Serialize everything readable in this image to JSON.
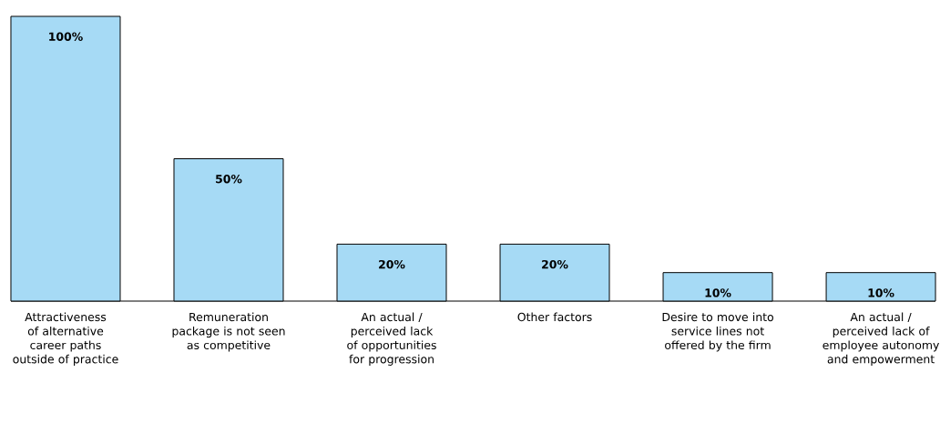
{
  "chart_data": {
    "type": "bar",
    "categories": [
      "Attractiveness of alternative career paths outside of practice",
      "Remuneration package is not seen as competitive",
      "An actual / perceived lack of opportunities for progression",
      "Other factors",
      "Desire to move into service lines not offered by the firm",
      "An actual / perceived lack of employee autonomy and empowerment"
    ],
    "values": [
      100,
      50,
      20,
      20,
      10,
      10
    ],
    "value_labels": [
      "100%",
      "50%",
      "20%",
      "20%",
      "10%",
      "10%"
    ],
    "color": "#a6daf5"
  }
}
